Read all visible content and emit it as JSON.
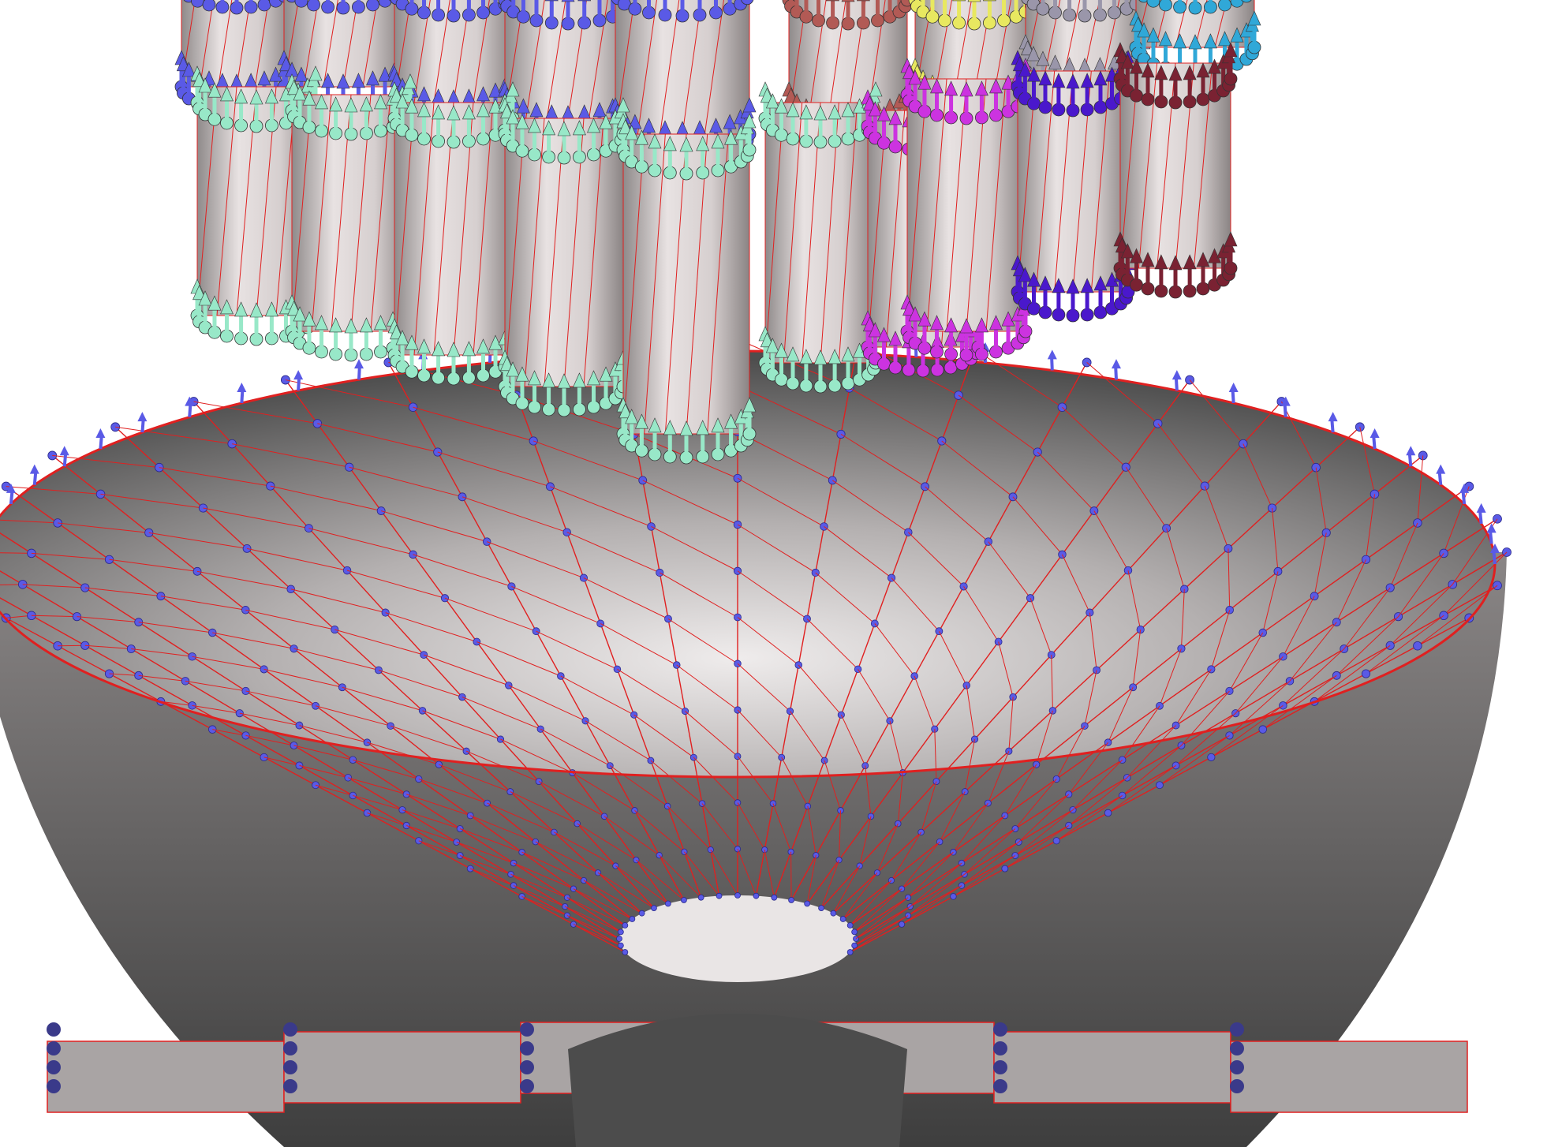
{
  "scene": {
    "description_colors": {
      "background": "#ffffff",
      "mesh_edge": "#e02020",
      "bowl_light": "#d9d6d6",
      "bowl_dark": "#4a4a4a",
      "cylinder_fill": "#cfc8c8",
      "normal_vectors_bowl": "#5a5ae6"
    },
    "cylinders": [
      {
        "color": "#98e8c8"
      },
      {
        "color": "#98e8c8"
      },
      {
        "color": "#98e8c8"
      },
      {
        "color": "#98e8c8"
      },
      {
        "color": "#98e8c8"
      },
      {
        "color": "#98e8c8"
      },
      {
        "color": "#cc33e0"
      },
      {
        "color": "#cc33e0"
      },
      {
        "color": "#4a18cc"
      },
      {
        "color": "#7a2232"
      },
      {
        "color": "#5a5ae6"
      },
      {
        "color": "#5a5ae6"
      },
      {
        "color": "#5a5ae6"
      },
      {
        "color": "#5a5ae6"
      },
      {
        "color": "#5a5ae6"
      },
      {
        "color": "#b25a55"
      },
      {
        "color": "#e8e860"
      },
      {
        "color": "#9a96aa"
      },
      {
        "color": "#30a8d8"
      }
    ]
  }
}
